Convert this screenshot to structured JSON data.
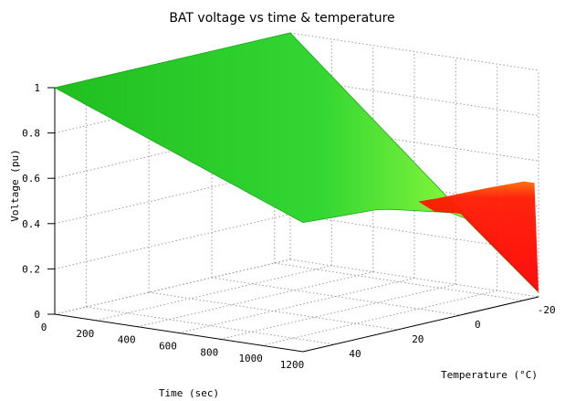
{
  "chart_data": {
    "type": "surface",
    "title": "BAT voltage vs time & temperature",
    "xlabel": "Time (sec)",
    "ylabel": "Temperature (°C)",
    "zlabel": "Voltage (pu)",
    "x_ticks": [
      "0",
      "200",
      "400",
      "600",
      "800",
      "1000",
      "1200"
    ],
    "y_ticks": [
      "-20",
      "0",
      "20",
      "40"
    ],
    "z_ticks": [
      "0",
      "0.2",
      "0.4",
      "0.6",
      "0.8",
      "1"
    ],
    "xlim": [
      0,
      1200
    ],
    "ylim": [
      -25,
      50
    ],
    "zlim": [
      0,
      1
    ],
    "grid": true,
    "colormap": [
      "#00cc00",
      "#ffff00",
      "#ff0000"
    ],
    "surface_samples": [
      {
        "time": 0,
        "temperature": 50,
        "voltage": 1.0
      },
      {
        "time": 0,
        "temperature": 25,
        "voltage": 1.0
      },
      {
        "time": 0,
        "temperature": 0,
        "voltage": 1.0
      },
      {
        "time": 0,
        "temperature": -25,
        "voltage": 1.0
      },
      {
        "time": 1200,
        "temperature": 50,
        "voltage": 0.57
      },
      {
        "time": 1200,
        "temperature": 25,
        "voltage": 0.55
      },
      {
        "time": 1200,
        "temperature": 0,
        "voltage": 0.45
      },
      {
        "time": 1200,
        "temperature": -25,
        "voltage": 0.02
      }
    ]
  }
}
